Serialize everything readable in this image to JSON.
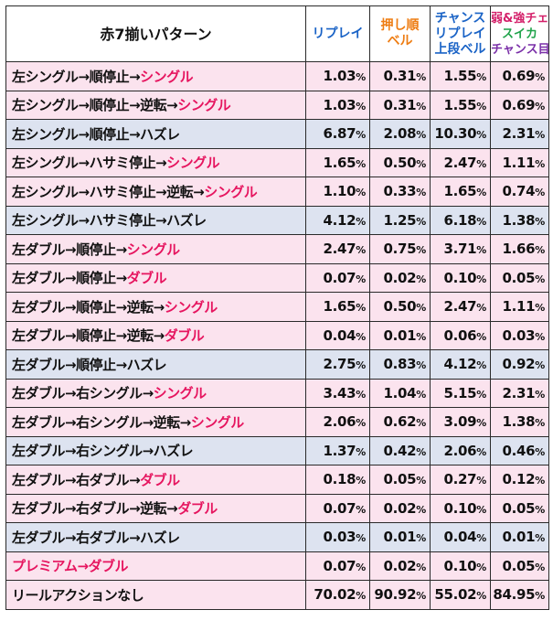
{
  "header": {
    "pattern": "赤7揃いパターン",
    "col_replay": "リプレイ",
    "col_push_line1": "押し順",
    "col_push_line2": "ベル",
    "col_chance_line1": "チャンス",
    "col_chance_line2": "リプレイ",
    "col_chance_line3": "上段ベル",
    "col_weak_line1": "弱&強チェ",
    "col_weak_line2": "スイカ",
    "col_weak_line3": "チャンス目"
  },
  "colors": {
    "pink_row": "#fbe3ee",
    "blue_row": "#dde3f0",
    "highlight_text": "#e6155f",
    "replay_header": "#1a63c6",
    "push_header": "#ee7d13",
    "weak_header_1": "#d4206a",
    "weak_header_2": "#1fa34a",
    "weak_header_3": "#7a2fa8"
  },
  "rows": [
    {
      "bg": "pink",
      "prefix": "左シングル→順停止→",
      "suffix": "シングル",
      "v": [
        "1.03",
        "0.31",
        "1.55",
        "0.69"
      ]
    },
    {
      "bg": "pink",
      "prefix": "左シングル→順停止→逆転→",
      "suffix": "シングル",
      "v": [
        "1.03",
        "0.31",
        "1.55",
        "0.69"
      ]
    },
    {
      "bg": "blue",
      "prefix": "左シングル→順停止→ハズレ",
      "suffix": "",
      "v": [
        "6.87",
        "2.08",
        "10.30",
        "2.31"
      ]
    },
    {
      "bg": "pink",
      "prefix": "左シングル→ハサミ停止→",
      "suffix": "シングル",
      "v": [
        "1.65",
        "0.50",
        "2.47",
        "1.11"
      ]
    },
    {
      "bg": "pink",
      "prefix": "左シングル→ハサミ停止→逆転→",
      "suffix": "シングル",
      "v": [
        "1.10",
        "0.33",
        "1.65",
        "0.74"
      ]
    },
    {
      "bg": "blue",
      "prefix": "左シングル→ハサミ停止→ハズレ",
      "suffix": "",
      "v": [
        "4.12",
        "1.25",
        "6.18",
        "1.38"
      ]
    },
    {
      "bg": "pink",
      "prefix": "左ダブル→順停止→",
      "suffix": "シングル",
      "v": [
        "2.47",
        "0.75",
        "3.71",
        "1.66"
      ]
    },
    {
      "bg": "pink",
      "prefix": "左ダブル→順停止→",
      "suffix": "ダブル",
      "v": [
        "0.07",
        "0.02",
        "0.10",
        "0.05"
      ]
    },
    {
      "bg": "pink",
      "prefix": "左ダブル→順停止→逆転→",
      "suffix": "シングル",
      "v": [
        "1.65",
        "0.50",
        "2.47",
        "1.11"
      ]
    },
    {
      "bg": "pink",
      "prefix": "左ダブル→順停止→逆転→",
      "suffix": "ダブル",
      "v": [
        "0.04",
        "0.01",
        "0.06",
        "0.03"
      ]
    },
    {
      "bg": "blue",
      "prefix": "左ダブル→順停止→ハズレ",
      "suffix": "",
      "v": [
        "2.75",
        "0.83",
        "4.12",
        "0.92"
      ]
    },
    {
      "bg": "pink",
      "prefix": "左ダブル→右シングル→",
      "suffix": "シングル",
      "v": [
        "3.43",
        "1.04",
        "5.15",
        "2.31"
      ]
    },
    {
      "bg": "pink",
      "prefix": "左ダブル→右シングル→逆転→",
      "suffix": "シングル",
      "v": [
        "2.06",
        "0.62",
        "3.09",
        "1.38"
      ]
    },
    {
      "bg": "blue",
      "prefix": "左ダブル→右シングル→ハズレ",
      "suffix": "",
      "v": [
        "1.37",
        "0.42",
        "2.06",
        "0.46"
      ]
    },
    {
      "bg": "pink",
      "prefix": "左ダブル→右ダブル→",
      "suffix": "ダブル",
      "v": [
        "0.18",
        "0.05",
        "0.27",
        "0.12"
      ]
    },
    {
      "bg": "pink",
      "prefix": "左ダブル→右ダブル→逆転→",
      "suffix": "ダブル",
      "v": [
        "0.07",
        "0.02",
        "0.10",
        "0.05"
      ]
    },
    {
      "bg": "blue",
      "prefix": "左ダブル→右ダブル→ハズレ",
      "suffix": "",
      "v": [
        "0.03",
        "0.01",
        "0.04",
        "0.01"
      ]
    },
    {
      "bg": "pink",
      "prefix": "",
      "suffix": "プレミアム→ダブル",
      "v": [
        "0.07",
        "0.02",
        "0.10",
        "0.05"
      ]
    },
    {
      "bg": "pink",
      "prefix": "リールアクションなし",
      "suffix": "",
      "v": [
        "70.02",
        "90.92",
        "55.02",
        "84.95"
      ]
    }
  ],
  "percent_sign": "%"
}
